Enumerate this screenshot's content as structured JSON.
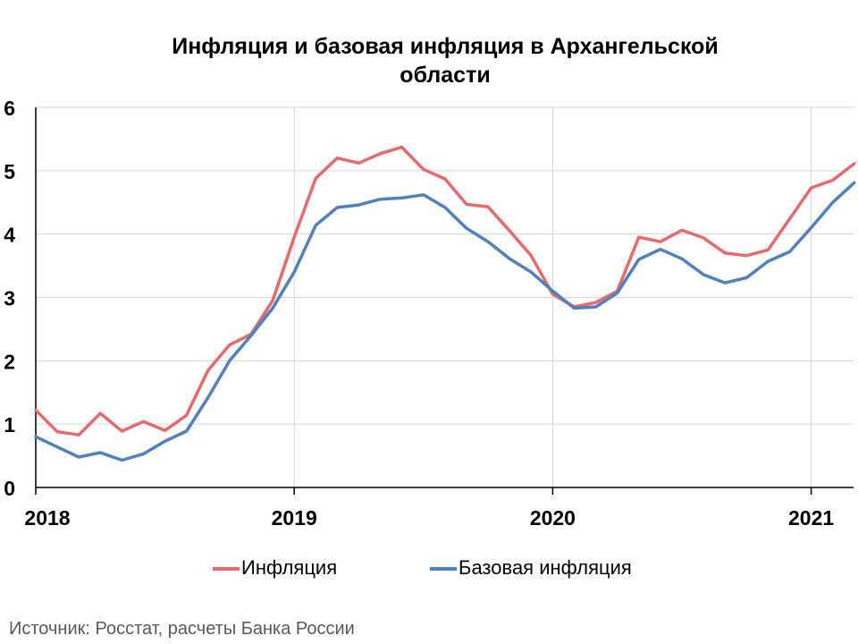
{
  "chart_data": {
    "type": "line",
    "title": "Инфляция и базовая инфляция в Архангельской области",
    "title_lines": [
      "Инфляция и базовая инфляция в Архангельской",
      "области"
    ],
    "xlabel": "",
    "ylabel": "",
    "x_start": "2018-01",
    "x_tick_labels": [
      "2018",
      "2019",
      "2020",
      "2021"
    ],
    "y_tick_labels": [
      "0",
      "1",
      "2",
      "3",
      "4",
      "5",
      "6"
    ],
    "ylim": [
      0,
      6
    ],
    "grid": true,
    "legend_position": "bottom",
    "series": [
      {
        "name": "Инфляция",
        "color": "#e8696b",
        "values": [
          1.22,
          0.88,
          0.83,
          1.17,
          0.89,
          1.04,
          0.9,
          1.14,
          1.85,
          2.25,
          2.42,
          2.95,
          3.95,
          4.88,
          5.2,
          5.12,
          5.27,
          5.37,
          5.02,
          4.87,
          4.47,
          4.43,
          4.05,
          3.66,
          3.05,
          2.85,
          2.92,
          3.1,
          3.95,
          3.88,
          4.06,
          3.94,
          3.7,
          3.66,
          3.75,
          4.24,
          4.73,
          4.85,
          5.11
        ]
      },
      {
        "name": "Базовая инфляция",
        "color": "#4f81bd",
        "values": [
          0.8,
          0.64,
          0.48,
          0.55,
          0.43,
          0.53,
          0.73,
          0.89,
          1.42,
          2.0,
          2.4,
          2.83,
          3.4,
          4.14,
          4.42,
          4.46,
          4.55,
          4.57,
          4.62,
          4.42,
          4.09,
          3.88,
          3.61,
          3.4,
          3.1,
          2.83,
          2.85,
          3.07,
          3.6,
          3.76,
          3.61,
          3.36,
          3.23,
          3.31,
          3.57,
          3.72,
          4.1,
          4.5,
          4.81
        ]
      }
    ]
  },
  "source": "Источник: Росстат, расчеты Банка России"
}
